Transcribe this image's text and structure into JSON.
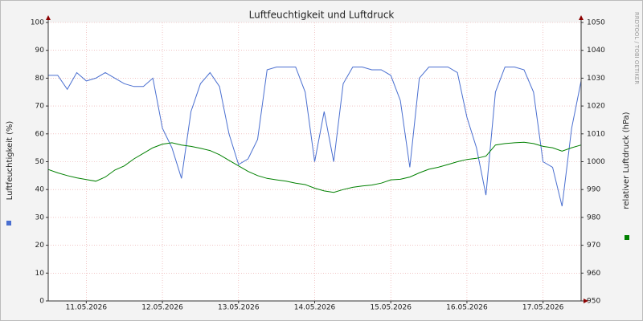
{
  "chart_data": {
    "type": "line",
    "title": "Luftfeuchtigkeit und Luftdruck",
    "y_label": "Luftfeuchtigkeit (%)",
    "y2_label": "relativer Luftdruck (hPa)",
    "watermark": "RRDTOOL / TOBI OETIKER",
    "grid": true,
    "x": [
      0,
      3,
      6,
      9,
      12,
      15,
      18,
      21,
      24,
      27,
      30,
      33,
      36,
      39,
      42,
      45,
      48,
      51,
      54,
      57,
      60,
      63,
      66,
      69,
      72,
      75,
      78,
      81,
      84,
      87,
      90,
      93,
      96,
      99,
      102,
      105,
      108,
      111,
      114,
      117,
      120,
      123,
      126,
      129,
      132,
      135,
      138,
      141,
      144,
      147,
      150,
      153,
      156,
      159,
      162,
      165,
      168
    ],
    "xlim": [
      0,
      168
    ],
    "xticks": [
      {
        "value": 12,
        "label": "11.05.2026"
      },
      {
        "value": 36,
        "label": "12.05.2026"
      },
      {
        "value": 60,
        "label": "13.05.2026"
      },
      {
        "value": 84,
        "label": "14.05.2026"
      },
      {
        "value": 108,
        "label": "15.05.2026"
      },
      {
        "value": 132,
        "label": "16.05.2026"
      },
      {
        "value": 156,
        "label": "17.05.2026"
      }
    ],
    "ylim": [
      0,
      100
    ],
    "yticks": [
      0,
      10,
      20,
      30,
      40,
      50,
      60,
      70,
      80,
      90,
      100
    ],
    "y2lim": [
      950,
      1050
    ],
    "y2ticks": [
      950,
      960,
      970,
      980,
      990,
      1000,
      1010,
      1020,
      1030,
      1040,
      1050
    ],
    "series": [
      {
        "name": "Luftfeuchtigkeit",
        "color": "#4a6fd0",
        "values": [
          81,
          81,
          76,
          82,
          79,
          80,
          82,
          80,
          78,
          77,
          77,
          80,
          62,
          55,
          44,
          68,
          78,
          82,
          77,
          60,
          49,
          51,
          58,
          83,
          84,
          84,
          84,
          75,
          50,
          68,
          50,
          78,
          84,
          84,
          83,
          83,
          81,
          72,
          48,
          80,
          84,
          84,
          84,
          82,
          66,
          55,
          38,
          75,
          84,
          84,
          83,
          75,
          50,
          48,
          34,
          62,
          79
        ]
      },
      {
        "name": "Luftdruck",
        "color": "#008000",
        "axis": "y2",
        "values": [
          997.2,
          996,
          995,
          994.2,
          993.6,
          993,
          994.5,
          997,
          998.5,
          1001,
          1003,
          1005,
          1006.3,
          1006.8,
          1006,
          1005.5,
          1004.8,
          1004,
          1002.5,
          1000.5,
          998.5,
          996.5,
          995,
          994,
          993.5,
          993,
          992.3,
          991.8,
          990.5,
          989.5,
          989,
          990,
          990.8,
          991.3,
          991.6,
          992.3,
          993.5,
          993.7,
          994.5,
          996,
          997.3,
          998,
          999,
          1000,
          1000.8,
          1001.2,
          1002,
          1006,
          1006.5,
          1006.8,
          1007,
          1006.5,
          1005.5,
          1005,
          1003.8,
          1005,
          1006
        ]
      }
    ]
  }
}
